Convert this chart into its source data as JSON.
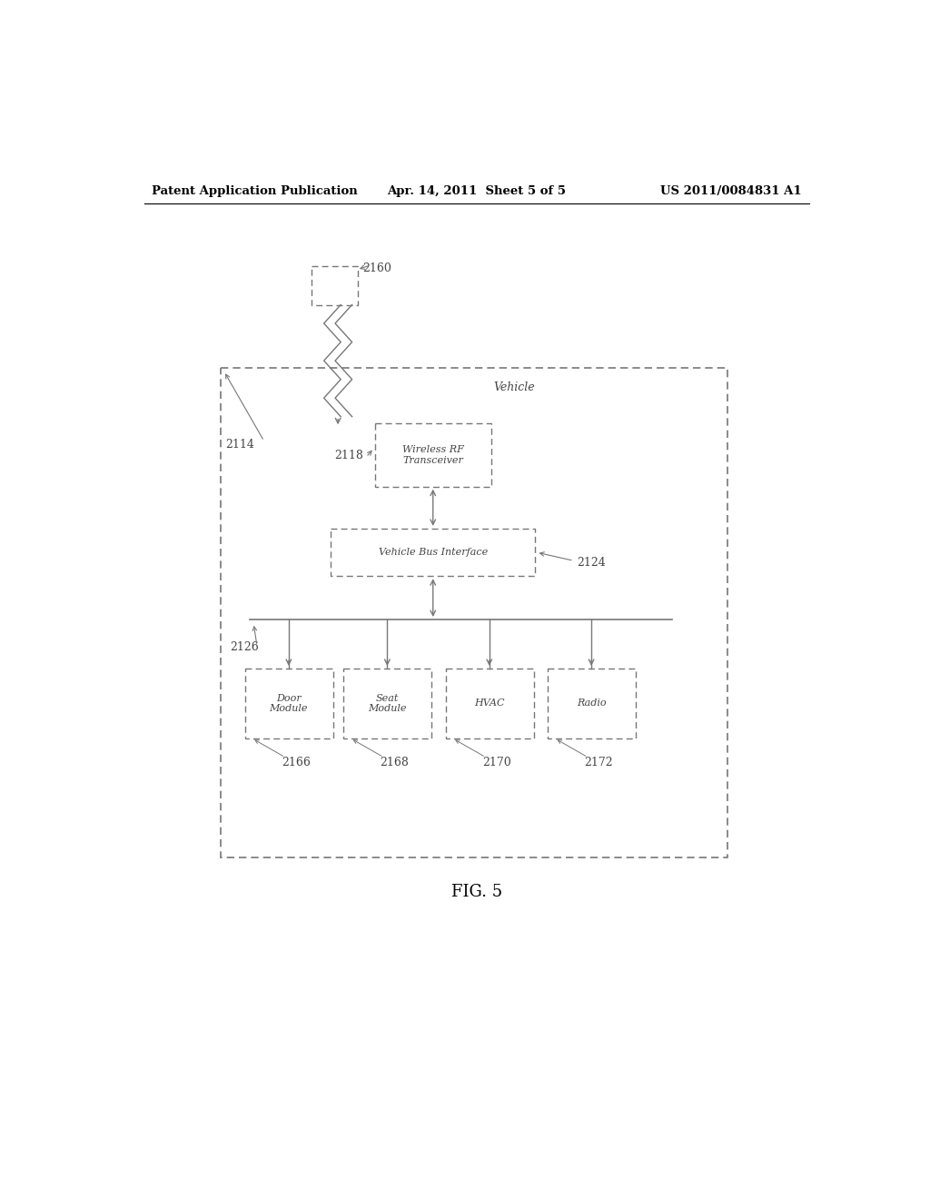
{
  "bg_color": "#ffffff",
  "header_left": "Patent Application Publication",
  "header_center": "Apr. 14, 2011  Sheet 5 of 5",
  "header_right": "US 2011/0084831 A1",
  "fig_label": "FIG. 5",
  "title_vehicle": "Vehicle",
  "box_rf": "Wireless RF\nTransceiver",
  "box_vbi": "Vehicle Bus Interface",
  "box_door": "Door\nModule",
  "box_seat": "Seat\nModule",
  "box_hvac": "HVAC",
  "box_radio": "Radio",
  "label_2160": "2160",
  "label_2114": "2114",
  "label_2118": "2118",
  "label_2124": "2124",
  "label_2126": "2126",
  "label_2166": "2166",
  "label_2168": "2168",
  "label_2170": "2170",
  "label_2172": "2172",
  "line_color": "#777777",
  "text_color": "#444444",
  "font_size_box": 8,
  "font_size_label": 9,
  "font_size_header": 9.5,
  "font_size_fig": 13
}
